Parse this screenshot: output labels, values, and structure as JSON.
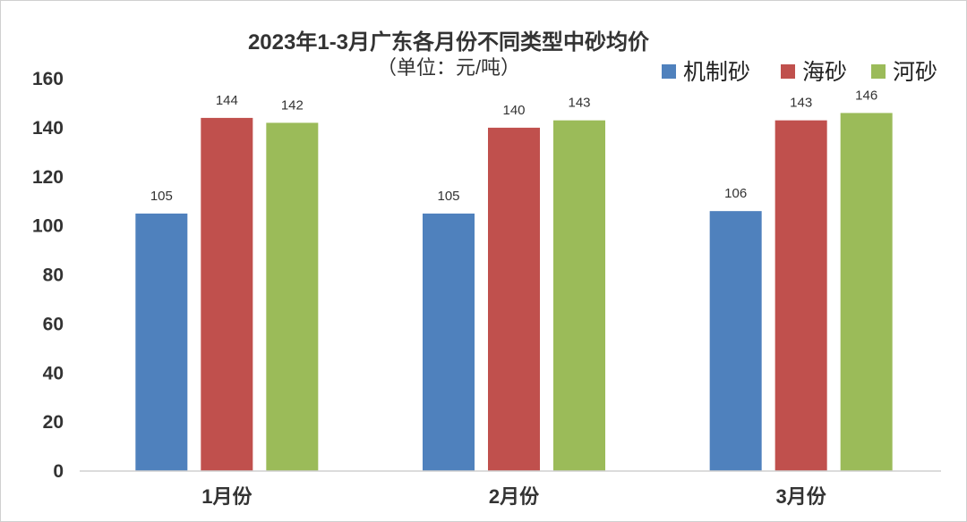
{
  "chart_data": {
    "type": "bar",
    "title": "2023年1-3月广东各月份不同类型中砂均价",
    "subtitle": "（单位：元/吨）",
    "categories": [
      "1月份",
      "2月份",
      "3月份"
    ],
    "series": [
      {
        "name": "机制砂",
        "color": "#4f81bd",
        "values": [
          105,
          105,
          106
        ]
      },
      {
        "name": "海砂",
        "color": "#c0504d",
        "values": [
          144,
          140,
          143
        ]
      },
      {
        "name": "河砂",
        "color": "#9bbb59",
        "values": [
          142,
          143,
          146
        ]
      }
    ],
    "ylim": [
      0,
      160
    ],
    "yticks": [
      0,
      20,
      40,
      60,
      80,
      100,
      120,
      140,
      160
    ],
    "grid": false,
    "legend": "top-right"
  }
}
